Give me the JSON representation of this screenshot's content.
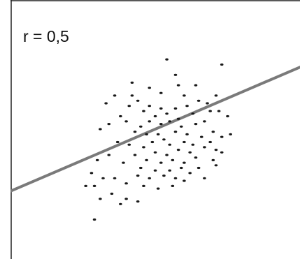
{
  "chart_data": {
    "type": "scatter",
    "title": "",
    "xlabel": "",
    "ylabel": "",
    "annotation": "r = 0,5",
    "xlim": [
      0,
      100
    ],
    "ylim": [
      0,
      100
    ],
    "grid": false,
    "legend": "none",
    "colors": {
      "points": "#1a1a1a",
      "trend_line": "#7a7a7a",
      "frame": "#222222"
    },
    "trend_line": {
      "x": [
        0,
        100
      ],
      "y": [
        26,
        74
      ]
    },
    "points": [
      {
        "x": 54,
        "y": 77
      },
      {
        "x": 57,
        "y": 71
      },
      {
        "x": 73,
        "y": 75
      },
      {
        "x": 64,
        "y": 67
      },
      {
        "x": 60,
        "y": 63
      },
      {
        "x": 71,
        "y": 63
      },
      {
        "x": 36,
        "y": 63
      },
      {
        "x": 42,
        "y": 63
      },
      {
        "x": 44,
        "y": 61
      },
      {
        "x": 33,
        "y": 60
      },
      {
        "x": 41,
        "y": 59
      },
      {
        "x": 48,
        "y": 59
      },
      {
        "x": 52,
        "y": 58
      },
      {
        "x": 57,
        "y": 58
      },
      {
        "x": 61,
        "y": 59
      },
      {
        "x": 65,
        "y": 61
      },
      {
        "x": 68,
        "y": 60
      },
      {
        "x": 63,
        "y": 56
      },
      {
        "x": 69,
        "y": 57
      },
      {
        "x": 72,
        "y": 57
      },
      {
        "x": 54,
        "y": 56
      },
      {
        "x": 50,
        "y": 55
      },
      {
        "x": 46,
        "y": 57
      },
      {
        "x": 55,
        "y": 53
      },
      {
        "x": 58,
        "y": 54
      },
      {
        "x": 52,
        "y": 52
      },
      {
        "x": 38,
        "y": 55
      },
      {
        "x": 40,
        "y": 53
      },
      {
        "x": 48,
        "y": 53
      },
      {
        "x": 45,
        "y": 51
      },
      {
        "x": 59,
        "y": 51
      },
      {
        "x": 64,
        "y": 52
      },
      {
        "x": 67,
        "y": 53
      },
      {
        "x": 75,
        "y": 55
      },
      {
        "x": 34,
        "y": 52
      },
      {
        "x": 31,
        "y": 50
      },
      {
        "x": 43,
        "y": 49
      },
      {
        "x": 47,
        "y": 48
      },
      {
        "x": 51,
        "y": 48
      },
      {
        "x": 57,
        "y": 49
      },
      {
        "x": 61,
        "y": 48
      },
      {
        "x": 66,
        "y": 47
      },
      {
        "x": 70,
        "y": 49
      },
      {
        "x": 53,
        "y": 46
      },
      {
        "x": 49,
        "y": 45
      },
      {
        "x": 55,
        "y": 44
      },
      {
        "x": 60,
        "y": 45
      },
      {
        "x": 63,
        "y": 44
      },
      {
        "x": 69,
        "y": 45
      },
      {
        "x": 73,
        "y": 47
      },
      {
        "x": 76,
        "y": 48
      },
      {
        "x": 41,
        "y": 44
      },
      {
        "x": 46,
        "y": 43
      },
      {
        "x": 37,
        "y": 45
      },
      {
        "x": 50,
        "y": 41
      },
      {
        "x": 54,
        "y": 40
      },
      {
        "x": 58,
        "y": 42
      },
      {
        "x": 62,
        "y": 41
      },
      {
        "x": 67,
        "y": 43
      },
      {
        "x": 71,
        "y": 42
      },
      {
        "x": 43,
        "y": 40
      },
      {
        "x": 47,
        "y": 38
      },
      {
        "x": 52,
        "y": 37
      },
      {
        "x": 56,
        "y": 38
      },
      {
        "x": 60,
        "y": 37
      },
      {
        "x": 64,
        "y": 39
      },
      {
        "x": 34,
        "y": 40
      },
      {
        "x": 30,
        "y": 38
      },
      {
        "x": 39,
        "y": 37
      },
      {
        "x": 45,
        "y": 35
      },
      {
        "x": 50,
        "y": 34
      },
      {
        "x": 55,
        "y": 34
      },
      {
        "x": 59,
        "y": 35
      },
      {
        "x": 65,
        "y": 35
      },
      {
        "x": 70,
        "y": 38
      },
      {
        "x": 44,
        "y": 32
      },
      {
        "x": 48,
        "y": 31
      },
      {
        "x": 53,
        "y": 32
      },
      {
        "x": 57,
        "y": 31
      },
      {
        "x": 62,
        "y": 33
      },
      {
        "x": 28,
        "y": 33
      },
      {
        "x": 32,
        "y": 31
      },
      {
        "x": 36,
        "y": 31
      },
      {
        "x": 40,
        "y": 29
      },
      {
        "x": 46,
        "y": 28
      },
      {
        "x": 51,
        "y": 27
      },
      {
        "x": 56,
        "y": 28
      },
      {
        "x": 60,
        "y": 30
      },
      {
        "x": 26,
        "y": 28
      },
      {
        "x": 29,
        "y": 28
      },
      {
        "x": 35,
        "y": 25
      },
      {
        "x": 40,
        "y": 23
      },
      {
        "x": 38,
        "y": 21
      },
      {
        "x": 44,
        "y": 22
      },
      {
        "x": 31,
        "y": 23
      },
      {
        "x": 67,
        "y": 31
      },
      {
        "x": 71,
        "y": 36
      },
      {
        "x": 29,
        "y": 15
      },
      {
        "x": 73,
        "y": 41
      },
      {
        "x": 52,
        "y": 64
      },
      {
        "x": 48,
        "y": 66
      },
      {
        "x": 58,
        "y": 67
      },
      {
        "x": 42,
        "y": 68
      }
    ]
  }
}
